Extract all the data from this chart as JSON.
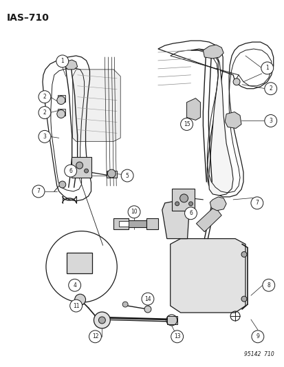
{
  "title": "IAS–710",
  "watermark": "95142  710",
  "bg_color": "#ffffff",
  "fig_width": 4.14,
  "fig_height": 5.33,
  "dpi": 100,
  "lc": "#1a1a1a",
  "lw": 0.8,
  "circle_r": 0.02,
  "label_fs": 6.0,
  "title_fs": 10,
  "wm_fs": 5.5
}
